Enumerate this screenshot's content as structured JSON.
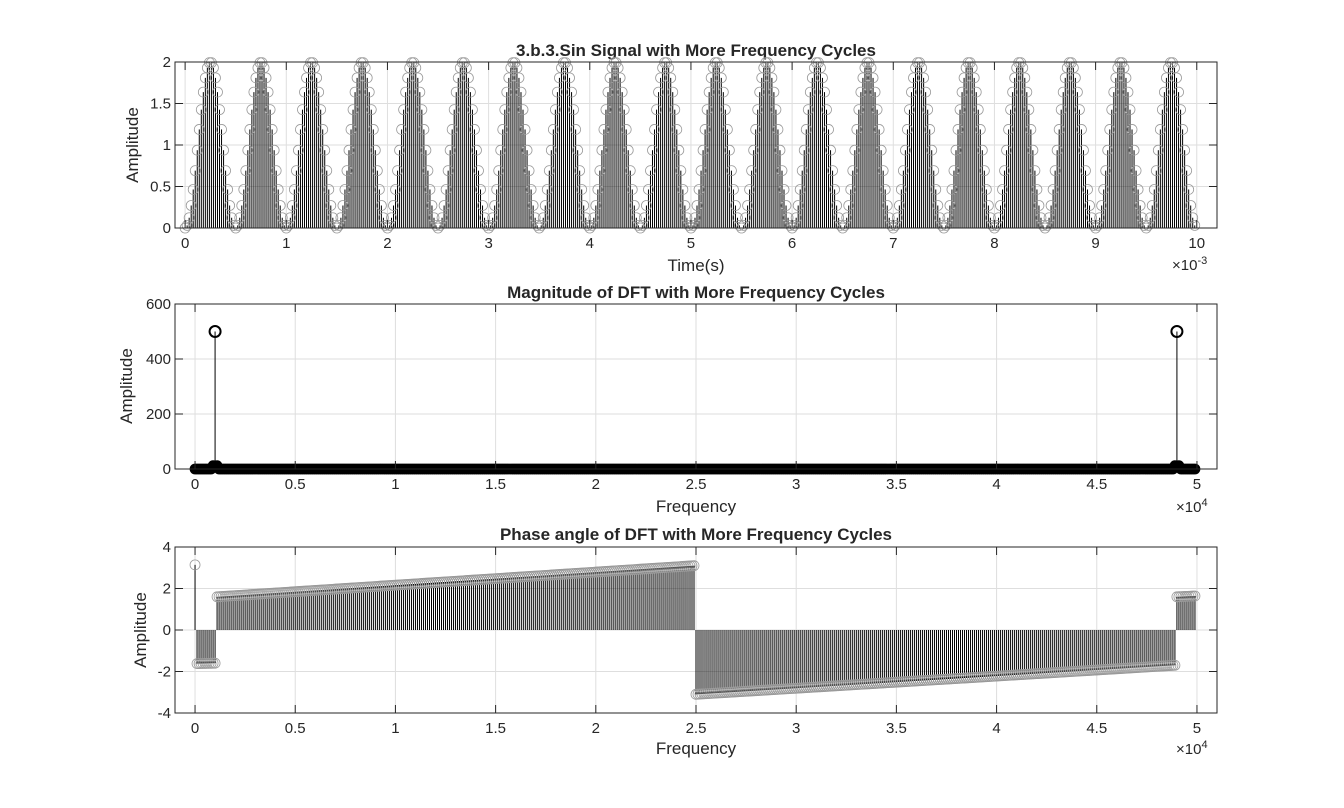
{
  "chart_data": [
    {
      "type": "stem",
      "title": "3.b.3.Sin Signal with More Frequency Cycles",
      "xlabel": "Time(s)",
      "ylabel": "Amplitude",
      "x_multiplier_label": "×10",
      "x_multiplier_exp": "-3",
      "xlim": [
        -0.0001,
        0.0102
      ],
      "ylim": [
        0,
        2
      ],
      "xticks": [
        0,
        1,
        2,
        3,
        4,
        5,
        6,
        7,
        8,
        9,
        10
      ],
      "yticks": [
        0,
        0.5,
        1,
        1.5,
        2
      ],
      "xtick_labels": [
        "0",
        "1",
        "2",
        "3",
        "4",
        "5",
        "6",
        "7",
        "8",
        "9",
        "10"
      ],
      "ytick_labels": [
        "0",
        "0.5",
        "1",
        "1.5",
        "2"
      ],
      "grid": true,
      "signal": {
        "form": "1 + sin(2*pi*f*t - pi/2)",
        "frequency_hz": 2000,
        "sample_rate_hz": 50000,
        "samples": 500,
        "t_start": 0,
        "t_step": 2e-05
      },
      "marker": "open-circle"
    },
    {
      "type": "stem",
      "title": "Magnitude of DFT with More Frequency Cycles",
      "xlabel": "Frequency",
      "ylabel": "Amplitude",
      "x_multiplier_label": "×10",
      "x_multiplier_exp": "4",
      "xlim": [
        -1000,
        51000
      ],
      "ylim": [
        0,
        600
      ],
      "xticks": [
        0,
        0.5,
        1,
        1.5,
        2,
        2.5,
        3,
        3.5,
        4,
        4.5,
        5
      ],
      "yticks": [
        0,
        200,
        400,
        600
      ],
      "xtick_labels": [
        "0",
        "0.5",
        "1",
        "1.5",
        "2",
        "2.5",
        "3",
        "3.5",
        "4",
        "4.5",
        "5"
      ],
      "ytick_labels": [
        "0",
        "200",
        "400",
        "600"
      ],
      "grid": true,
      "frequency_step": 100,
      "points": 500,
      "peaks": [
        {
          "x": 1000,
          "y": 500
        },
        {
          "x": 49000,
          "y": 500
        }
      ],
      "baseline_value": 0,
      "marker": "open-circle"
    },
    {
      "type": "stem",
      "title": "Phase angle of DFT with More Frequency Cycles",
      "xlabel": "Frequency",
      "ylabel": "Amplitude",
      "x_multiplier_label": "×10",
      "x_multiplier_exp": "4",
      "xlim": [
        -1000,
        51000
      ],
      "ylim": [
        -4,
        4
      ],
      "xticks": [
        0,
        0.5,
        1,
        1.5,
        2,
        2.5,
        3,
        3.5,
        4,
        4.5,
        5
      ],
      "yticks": [
        -4,
        -2,
        0,
        2,
        4
      ],
      "xtick_labels": [
        "0",
        "0.5",
        "1",
        "1.5",
        "2",
        "2.5",
        "3",
        "3.5",
        "4",
        "4.5",
        "5"
      ],
      "ytick_labels": [
        "-4",
        "-2",
        "0",
        "2",
        "4"
      ],
      "grid": true,
      "frequency_step": 100,
      "points": 500,
      "segments": [
        {
          "x_from": 0,
          "x_to": 0,
          "y_from": 3.14,
          "y_to": 3.14
        },
        {
          "x_from": 100,
          "x_to": 1000,
          "y_from": -1.62,
          "y_to": -1.6
        },
        {
          "x_from": 1100,
          "x_to": 24900,
          "y_from": 1.6,
          "y_to": 3.1
        },
        {
          "x_from": 25000,
          "x_to": 48900,
          "y_from": -3.1,
          "y_to": -1.7
        },
        {
          "x_from": 49000,
          "x_to": 49900,
          "y_from": 1.6,
          "y_to": 1.64
        }
      ],
      "marker": "open-circle"
    }
  ]
}
